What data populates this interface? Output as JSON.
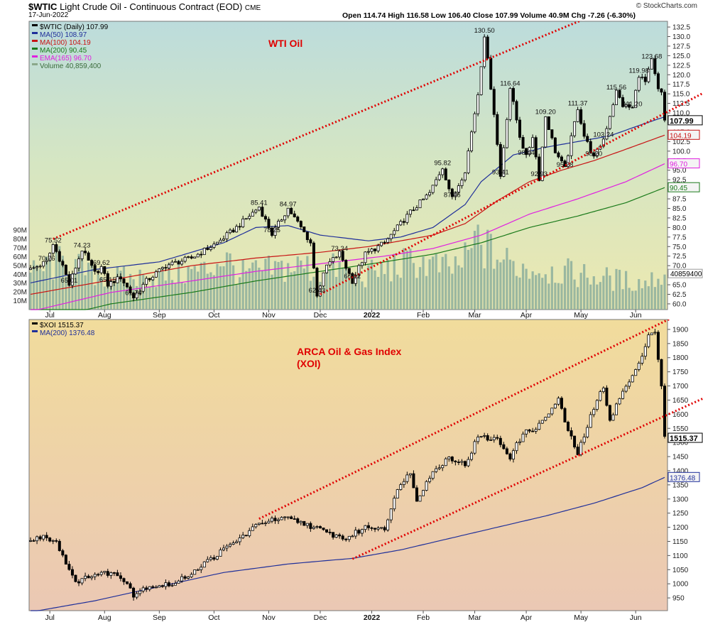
{
  "header": {
    "symbol": "$WTIC",
    "title": "Light Crude Oil - Continuous Contract (EOD)",
    "exchange": "CME",
    "date": "17-Jun-2022",
    "ohlc_text": "Open 114.74  High 116.58  Low 106.40  Close 107.99  Volume 40.9M  Chg -7.26 (-6.30%)",
    "watermark": "© StockCharts.com"
  },
  "chart_data": [
    {
      "type": "candlestick",
      "panel": "top",
      "legend": [
        {
          "label": "$WTIC (Daily) 107.99",
          "color": "#000000"
        },
        {
          "label": "MA(50) 108.97",
          "color": "#1f2f9a"
        },
        {
          "label": "MA(100) 104.19",
          "color": "#c81414"
        },
        {
          "label": "MA(200) 90.45",
          "color": "#1a7a1a"
        },
        {
          "label": "EMA(165) 96.70",
          "color": "#e020e0"
        },
        {
          "label": "Volume 40,859,400",
          "color": "#8aa88a"
        }
      ],
      "annotation": "WTI Oil",
      "yticks": [
        "132.5",
        "130.0",
        "127.5",
        "125.0",
        "122.5",
        "120.0",
        "117.5",
        "115.0",
        "112.5",
        "110.0",
        "107.5",
        "105.0",
        "102.5",
        "100.0",
        "97.5",
        "95.0",
        "92.5",
        "90.0",
        "87.5",
        "85.0",
        "82.5",
        "80.0",
        "77.5",
        "75.0",
        "72.5",
        "70.0",
        "67.5",
        "65.0",
        "62.5",
        "60.0"
      ],
      "ylim": [
        58.5,
        134
      ],
      "volume_ticks": [
        "90M",
        "80M",
        "70M",
        "60M",
        "50M",
        "40M",
        "30M",
        "20M",
        "10M"
      ],
      "volume_badge": "40859400",
      "last_labels": [
        {
          "text": "107.99",
          "value": 107.99,
          "style": "bold"
        },
        {
          "text": "104.19",
          "value": 104.19,
          "color": "#c81414"
        },
        {
          "text": "96.70",
          "value": 96.7,
          "color": "#e020e0"
        },
        {
          "text": "90.45",
          "value": 90.45,
          "color": "#1a7a1a"
        }
      ],
      "price_labels": [
        {
          "text": "75.52",
          "t": 7,
          "v": 75.52
        },
        {
          "text": "70.76",
          "t": 5,
          "v": 70.76
        },
        {
          "text": "74.23",
          "t": 16,
          "v": 74.23
        },
        {
          "text": "65.01",
          "t": 12,
          "v": 65.01
        },
        {
          "text": "69.62",
          "t": 22,
          "v": 69.62
        },
        {
          "text": "65.15",
          "t": 24,
          "v": 65.15
        },
        {
          "text": "61.74",
          "t": 32,
          "v": 61.74
        },
        {
          "text": "85.41",
          "t": 71,
          "v": 85.41
        },
        {
          "text": "84.97",
          "t": 80,
          "v": 84.97
        },
        {
          "text": "78.25",
          "t": 75,
          "v": 78.25
        },
        {
          "text": "73.34",
          "t": 96,
          "v": 73.34
        },
        {
          "text": "62.43",
          "t": 89,
          "v": 62.43
        },
        {
          "text": "66.12",
          "t": 100,
          "v": 66.12
        },
        {
          "text": "95.82",
          "t": 128,
          "v": 95.82
        },
        {
          "text": "87.46",
          "t": 131,
          "v": 87.46
        },
        {
          "text": "130.50",
          "t": 141,
          "v": 130.5
        },
        {
          "text": "93.41",
          "t": 146,
          "v": 93.41
        },
        {
          "text": "116.64",
          "t": 149,
          "v": 116.64
        },
        {
          "text": "98.44",
          "t": 154,
          "v": 98.44
        },
        {
          "text": "109.20",
          "t": 160,
          "v": 109.2
        },
        {
          "text": "92.93",
          "t": 158,
          "v": 92.93
        },
        {
          "text": "95.28",
          "t": 166,
          "v": 95.28
        },
        {
          "text": "111.37",
          "t": 170,
          "v": 111.37
        },
        {
          "text": "98.20",
          "t": 175,
          "v": 98.2
        },
        {
          "text": "103.24",
          "t": 178,
          "v": 103.24
        },
        {
          "text": "115.56",
          "t": 182,
          "v": 115.56
        },
        {
          "text": "111.20",
          "t": 187,
          "v": 111.2
        },
        {
          "text": "119.98",
          "t": 189,
          "v": 119.98
        },
        {
          "text": "123.68",
          "t": 193,
          "v": 123.68
        }
      ],
      "anchors": [
        [
          0,
          69
        ],
        [
          5,
          71
        ],
        [
          7,
          75.5
        ],
        [
          10,
          70
        ],
        [
          12,
          65
        ],
        [
          16,
          74.2
        ],
        [
          20,
          68
        ],
        [
          22,
          69.6
        ],
        [
          24,
          65
        ],
        [
          28,
          67
        ],
        [
          32,
          61.7
        ],
        [
          36,
          66
        ],
        [
          42,
          70
        ],
        [
          50,
          72
        ],
        [
          58,
          76
        ],
        [
          64,
          80
        ],
        [
          71,
          85.4
        ],
        [
          75,
          78.3
        ],
        [
          80,
          85
        ],
        [
          84,
          80
        ],
        [
          87,
          76
        ],
        [
          89,
          62.5
        ],
        [
          92,
          70
        ],
        [
          96,
          73.3
        ],
        [
          100,
          66
        ],
        [
          104,
          73
        ],
        [
          110,
          76
        ],
        [
          118,
          84
        ],
        [
          124,
          89
        ],
        [
          128,
          95.8
        ],
        [
          131,
          87.5
        ],
        [
          135,
          95
        ],
        [
          139,
          115
        ],
        [
          141,
          130.5
        ],
        [
          144,
          110
        ],
        [
          146,
          93.4
        ],
        [
          149,
          116.6
        ],
        [
          152,
          104
        ],
        [
          154,
          98.4
        ],
        [
          156,
          104
        ],
        [
          158,
          92.9
        ],
        [
          160,
          109.2
        ],
        [
          163,
          100
        ],
        [
          166,
          95.3
        ],
        [
          170,
          111.4
        ],
        [
          172,
          104
        ],
        [
          175,
          98.2
        ],
        [
          178,
          103.2
        ],
        [
          182,
          115.6
        ],
        [
          184,
          112
        ],
        [
          187,
          111.2
        ],
        [
          189,
          120
        ],
        [
          191,
          118
        ],
        [
          193,
          123.7
        ],
        [
          195,
          116
        ],
        [
          196,
          115
        ],
        [
          197,
          108
        ]
      ],
      "ma_anchors": {
        "ma50": [
          [
            0,
            65.5
          ],
          [
            20,
            69
          ],
          [
            40,
            71
          ],
          [
            60,
            76
          ],
          [
            70,
            80
          ],
          [
            80,
            80.5
          ],
          [
            90,
            78
          ],
          [
            105,
            76.5
          ],
          [
            115,
            77.5
          ],
          [
            125,
            80
          ],
          [
            135,
            86
          ],
          [
            140,
            92
          ],
          [
            150,
            99
          ],
          [
            160,
            101
          ],
          [
            170,
            102.5
          ],
          [
            180,
            104
          ],
          [
            190,
            107
          ],
          [
            197,
            108.97
          ]
        ],
        "ma100": [
          [
            0,
            62.5
          ],
          [
            30,
            67
          ],
          [
            50,
            70
          ],
          [
            70,
            72
          ],
          [
            90,
            73.5
          ],
          [
            105,
            75
          ],
          [
            115,
            76.5
          ],
          [
            125,
            78
          ],
          [
            135,
            81
          ],
          [
            145,
            87
          ],
          [
            155,
            92
          ],
          [
            165,
            95
          ],
          [
            175,
            97.5
          ],
          [
            185,
            100.5
          ],
          [
            197,
            104.19
          ]
        ],
        "ma200": [
          [
            0,
            55
          ],
          [
            25,
            60
          ],
          [
            50,
            63
          ],
          [
            70,
            66
          ],
          [
            90,
            68.5
          ],
          [
            110,
            71
          ],
          [
            125,
            73
          ],
          [
            140,
            76
          ],
          [
            155,
            80
          ],
          [
            170,
            83
          ],
          [
            185,
            86.5
          ],
          [
            197,
            90.45
          ]
        ],
        "ema165": [
          [
            0,
            58
          ],
          [
            25,
            63
          ],
          [
            50,
            66
          ],
          [
            70,
            68.5
          ],
          [
            90,
            70.5
          ],
          [
            110,
            72.5
          ],
          [
            125,
            74.5
          ],
          [
            140,
            78
          ],
          [
            155,
            83.5
          ],
          [
            170,
            87.5
          ],
          [
            185,
            92
          ],
          [
            197,
            96.7
          ]
        ]
      },
      "trendlines": [
        {
          "style": "dotted",
          "color": "#e00000",
          "from": [
            7,
            77
          ],
          "to": [
            197,
            145
          ]
        },
        {
          "style": "dotted",
          "color": "#e00000",
          "from": [
            90,
            62.5
          ],
          "to": [
            197,
            112
          ]
        }
      ],
      "volume_anchors": [
        [
          0,
          40
        ],
        [
          10,
          55
        ],
        [
          20,
          40
        ],
        [
          30,
          35
        ],
        [
          40,
          38
        ],
        [
          55,
          45
        ],
        [
          60,
          60
        ],
        [
          65,
          40
        ],
        [
          75,
          45
        ],
        [
          85,
          50
        ],
        [
          90,
          40
        ],
        [
          95,
          48
        ],
        [
          100,
          35
        ],
        [
          110,
          45
        ],
        [
          120,
          55
        ],
        [
          130,
          45
        ],
        [
          135,
          55
        ],
        [
          139,
          80
        ],
        [
          141,
          70
        ],
        [
          145,
          60
        ],
        [
          150,
          50
        ],
        [
          160,
          45
        ],
        [
          170,
          40
        ],
        [
          180,
          35
        ],
        [
          190,
          30
        ],
        [
          197,
          40
        ]
      ]
    },
    {
      "type": "candlestick",
      "panel": "bottom",
      "legend": [
        {
          "label": "$XOI 1515.37",
          "color": "#000000"
        },
        {
          "label": "MA(200) 1376.48",
          "color": "#1f2f9a"
        }
      ],
      "annotation_lines": [
        "ARCA Oil & Gas Index",
        "(XOI)"
      ],
      "yticks": [
        "1900",
        "1850",
        "1800",
        "1750",
        "1700",
        "1650",
        "1600",
        "1550",
        "1500",
        "1450",
        "1400",
        "1350",
        "1300",
        "1250",
        "1200",
        "1150",
        "1100",
        "1050",
        "1000",
        "950"
      ],
      "ylim": [
        905,
        1935
      ],
      "last_labels": [
        {
          "text": "1515.37",
          "value": 1515.37,
          "style": "bold"
        },
        {
          "text": "1376.48",
          "value": 1376.48,
          "color": "#1f2f9a"
        }
      ],
      "anchors": [
        [
          0,
          1150
        ],
        [
          4,
          1170
        ],
        [
          8,
          1150
        ],
        [
          12,
          1050
        ],
        [
          15,
          1000
        ],
        [
          18,
          1030
        ],
        [
          25,
          1040
        ],
        [
          30,
          1010
        ],
        [
          32,
          960
        ],
        [
          36,
          990
        ],
        [
          45,
          1000
        ],
        [
          55,
          1080
        ],
        [
          65,
          1160
        ],
        [
          72,
          1220
        ],
        [
          80,
          1230
        ],
        [
          86,
          1210
        ],
        [
          92,
          1180
        ],
        [
          98,
          1160
        ],
        [
          104,
          1200
        ],
        [
          110,
          1200
        ],
        [
          115,
          1360
        ],
        [
          118,
          1390
        ],
        [
          120,
          1300
        ],
        [
          124,
          1380
        ],
        [
          130,
          1450
        ],
        [
          135,
          1420
        ],
        [
          139,
          1520
        ],
        [
          145,
          1510
        ],
        [
          149,
          1450
        ],
        [
          153,
          1530
        ],
        [
          158,
          1560
        ],
        [
          164,
          1650
        ],
        [
          167,
          1540
        ],
        [
          170,
          1460
        ],
        [
          174,
          1590
        ],
        [
          178,
          1700
        ],
        [
          180,
          1580
        ],
        [
          184,
          1680
        ],
        [
          188,
          1750
        ],
        [
          192,
          1880
        ],
        [
          194,
          1895
        ],
        [
          196,
          1700
        ],
        [
          197,
          1515
        ]
      ],
      "ma_anchors": {
        "ma200": [
          [
            0,
            900
          ],
          [
            20,
            940
          ],
          [
            40,
            990
          ],
          [
            60,
            1040
          ],
          [
            80,
            1070
          ],
          [
            100,
            1090
          ],
          [
            115,
            1120
          ],
          [
            130,
            1160
          ],
          [
            145,
            1200
          ],
          [
            160,
            1240
          ],
          [
            175,
            1285
          ],
          [
            190,
            1340
          ],
          [
            197,
            1376.48
          ]
        ]
      },
      "trendlines": [
        {
          "style": "dotted",
          "color": "#e00000",
          "from": [
            71,
            1230
          ],
          "to": [
            197,
            1955
          ]
        },
        {
          "style": "dotted",
          "color": "#e00000",
          "from": [
            100,
            1088
          ],
          "to": [
            197,
            1618
          ]
        }
      ]
    }
  ],
  "x_axis": {
    "months": [
      {
        "label": "Jul",
        "t": 6
      },
      {
        "label": "Aug",
        "t": 23
      },
      {
        "label": "Sep",
        "t": 40
      },
      {
        "label": "Oct",
        "t": 57
      },
      {
        "label": "Nov",
        "t": 74
      },
      {
        "label": "Dec",
        "t": 90
      },
      {
        "label": "2022",
        "t": 106,
        "bold": true
      },
      {
        "label": "Feb",
        "t": 122
      },
      {
        "label": "Mar",
        "t": 138
      },
      {
        "label": "Apr",
        "t": 154
      },
      {
        "label": "May",
        "t": 171
      },
      {
        "label": "Jun",
        "t": 188
      }
    ]
  }
}
